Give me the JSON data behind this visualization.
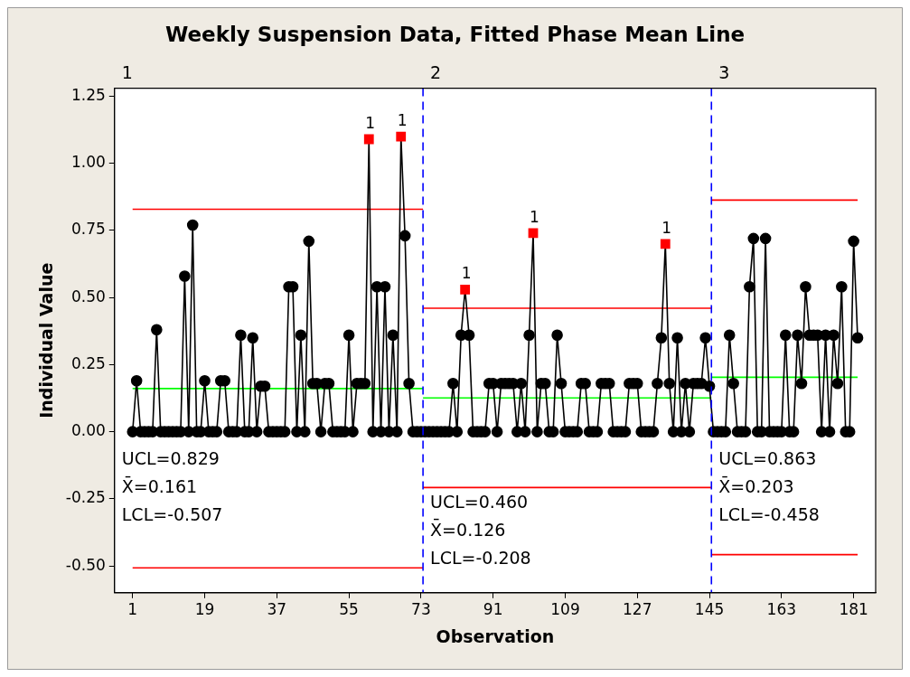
{
  "chart_data": {
    "type": "line",
    "title": "Weekly Suspension Data, Fitted Phase Mean Line",
    "xlabel": "Observation",
    "ylabel": "Individual Value",
    "x": [
      1,
      2,
      3,
      4,
      5,
      6,
      7,
      8,
      9,
      10,
      11,
      12,
      13,
      14,
      15,
      16,
      17,
      18,
      19,
      20,
      21,
      22,
      23,
      24,
      25,
      26,
      27,
      28,
      29,
      30,
      31,
      32,
      33,
      34,
      35,
      36,
      37,
      38,
      39,
      40,
      41,
      42,
      43,
      44,
      45,
      46,
      47,
      48,
      49,
      50,
      51,
      52,
      53,
      54,
      55,
      56,
      57,
      58,
      59,
      60,
      61,
      62,
      63,
      64,
      65,
      66,
      67,
      68,
      69,
      70,
      71,
      72,
      73,
      74,
      75,
      76,
      77,
      78,
      79,
      80,
      81,
      82,
      83,
      84,
      85,
      86,
      87,
      88,
      89,
      90,
      91,
      92,
      93,
      94,
      95,
      96,
      97,
      98,
      99,
      100,
      101,
      102,
      103,
      104,
      105,
      106,
      107,
      108,
      109,
      110,
      111,
      112,
      113,
      114,
      115,
      116,
      117,
      118,
      119,
      120,
      121,
      122,
      123,
      124,
      125,
      126,
      127,
      128,
      129,
      130,
      131,
      132,
      133,
      134,
      135,
      136,
      137,
      138,
      139,
      140,
      141,
      142,
      143,
      144,
      145,
      146,
      147,
      148,
      149,
      150,
      151,
      152,
      153,
      154,
      155,
      156,
      157,
      158,
      159,
      160,
      161,
      162,
      163,
      164,
      165,
      166,
      167,
      168,
      169,
      170,
      171,
      172,
      173,
      174,
      175,
      176,
      177,
      178,
      179,
      180,
      181,
      182
    ],
    "series": [
      {
        "color": "#000000",
        "marker": "circle",
        "colors": [
          "#000000",
          "#000000",
          "#000000",
          "#000000",
          "#000000",
          "#000000",
          "#000000",
          "#000000",
          "#000000",
          "#000000",
          "#000000",
          "#000000",
          "#000000",
          "#000000",
          "#000000",
          "#000000",
          "#000000",
          "#000000",
          "#000000",
          "#000000",
          "#000000",
          "#000000",
          "#000000",
          "#000000",
          "#000000",
          "#000000",
          "#000000",
          "#000000",
          "#000000",
          "#000000",
          "#000000",
          "#000000",
          "#000000",
          "#000000",
          "#000000",
          "#000000",
          "#000000",
          "#000000",
          "#000000",
          "#000000",
          "#000000",
          "#000000",
          "#000000",
          "#000000",
          "#000000",
          "#000000",
          "#000000",
          "#000000",
          "#000000",
          "#000000",
          "#000000",
          "#000000",
          "#000000",
          "#000000",
          "#000000",
          "#000000",
          "#000000",
          "#000000",
          "#000000",
          "#ff0000",
          "#000000",
          "#000000",
          "#000000",
          "#000000",
          "#000000",
          "#000000",
          "#000000",
          "#ff0000",
          "#000000",
          "#000000",
          "#000000",
          "#000000",
          "#000000",
          "#000000",
          "#000000",
          "#000000",
          "#000000",
          "#000000",
          "#000000",
          "#000000",
          "#000000",
          "#000000",
          "#000000",
          "#ff0000",
          "#000000",
          "#000000",
          "#000000",
          "#000000",
          "#000000",
          "#000000",
          "#000000",
          "#000000",
          "#000000",
          "#000000",
          "#000000",
          "#000000",
          "#000000",
          "#000000",
          "#000000",
          "#000000",
          "#ff0000",
          "#000000",
          "#000000",
          "#000000",
          "#000000",
          "#000000",
          "#000000",
          "#000000",
          "#000000",
          "#000000",
          "#000000",
          "#000000",
          "#000000",
          "#000000",
          "#000000",
          "#000000",
          "#000000",
          "#000000",
          "#000000",
          "#000000",
          "#000000",
          "#000000",
          "#000000",
          "#000000",
          "#000000",
          "#000000",
          "#000000",
          "#000000",
          "#000000",
          "#000000",
          "#000000",
          "#000000",
          "#000000",
          "#ff0000",
          "#000000",
          "#000000",
          "#000000",
          "#000000",
          "#000000",
          "#000000",
          "#000000",
          "#000000",
          "#000000",
          "#000000",
          "#000000",
          "#000000",
          "#000000",
          "#000000",
          "#000000",
          "#000000",
          "#000000",
          "#000000",
          "#000000",
          "#000000",
          "#000000",
          "#000000",
          "#000000",
          "#000000",
          "#000000",
          "#000000",
          "#000000",
          "#000000",
          "#000000",
          "#000000",
          "#000000",
          "#000000",
          "#000000",
          "#000000",
          "#000000",
          "#000000",
          "#000000",
          "#000000",
          "#000000",
          "#000000",
          "#000000",
          "#000000",
          "#000000",
          "#000000",
          "#000000",
          "#000000",
          "#000000",
          "#000000"
        ],
        "values": [
          0,
          0.19,
          0,
          0,
          0,
          0,
          0.38,
          0,
          0,
          0,
          0,
          0,
          0,
          0.58,
          0,
          0.77,
          0,
          0,
          0.19,
          0,
          0,
          0,
          0.19,
          0.19,
          0,
          0,
          0,
          0.36,
          0,
          0,
          0.35,
          0,
          0.17,
          0.17,
          0,
          0,
          0,
          0,
          0,
          0.54,
          0.54,
          0,
          0.36,
          0,
          0.71,
          0.18,
          0.18,
          0,
          0.18,
          0.18,
          0,
          0,
          0,
          0,
          0.36,
          0,
          0.18,
          0.18,
          0.18,
          1.09,
          0,
          0.54,
          0,
          0.54,
          0,
          0.36,
          0,
          1.1,
          0.73,
          0.18,
          0,
          0,
          0,
          0,
          0,
          0,
          0,
          0,
          0,
          0,
          0.18,
          0,
          0.36,
          0.53,
          0.36,
          0,
          0,
          0,
          0,
          0.18,
          0.18,
          0,
          0.18,
          0.18,
          0.18,
          0.18,
          0,
          0.18,
          0,
          0.36,
          0.74,
          0,
          0.18,
          0.18,
          0,
          0,
          0.36,
          0.18,
          0,
          0,
          0,
          0,
          0.18,
          0.18,
          0,
          0,
          0,
          0.18,
          0.18,
          0.18,
          0,
          0,
          0,
          0,
          0.18,
          0.18,
          0.18,
          0,
          0,
          0,
          0,
          0.18,
          0.35,
          0.7,
          0.18,
          0,
          0.35,
          0,
          0.18,
          0,
          0.18,
          0.18,
          0.18,
          0.35,
          0.17,
          0,
          0,
          0,
          0,
          0.36,
          0.18,
          0,
          0,
          0,
          0.54,
          0.72,
          0,
          0,
          0.72,
          0,
          0,
          0,
          0,
          0.36,
          0,
          0,
          0.36,
          0.18,
          0.54,
          0.36,
          0.36,
          0.36,
          0,
          0.36,
          0,
          0.36,
          0.18,
          0.54,
          0,
          0,
          0.71,
          0.35
        ]
      },
      {
        "color": "#ff0000",
        "marker": "none",
        "x": [
          1,
          73.5
        ],
        "values": [
          0.829,
          0.829
        ]
      },
      {
        "color": "#00ff00",
        "marker": "none",
        "x": [
          1,
          73.5
        ],
        "values": [
          0.161,
          0.161
        ]
      },
      {
        "color": "#ff0000",
        "marker": "none",
        "x": [
          1,
          73.5
        ],
        "values": [
          -0.507,
          -0.507
        ]
      },
      {
        "color": "#ff0000",
        "marker": "none",
        "x": [
          73.5,
          145.5
        ],
        "values": [
          0.46,
          0.46
        ]
      },
      {
        "color": "#00ff00",
        "marker": "none",
        "x": [
          73.5,
          145.5
        ],
        "values": [
          0.126,
          0.126
        ]
      },
      {
        "color": "#ff0000",
        "marker": "none",
        "x": [
          73.5,
          145.5
        ],
        "values": [
          -0.208,
          -0.208
        ]
      },
      {
        "color": "#ff0000",
        "marker": "none",
        "x": [
          145.5,
          182
        ],
        "values": [
          0.863,
          0.863
        ]
      },
      {
        "color": "#00ff00",
        "marker": "none",
        "x": [
          145.5,
          182
        ],
        "values": [
          0.203,
          0.203
        ]
      },
      {
        "color": "#ff0000",
        "marker": "none",
        "x": [
          145.5,
          182
        ],
        "values": [
          -0.458,
          -0.458
        ]
      }
    ],
    "xlim": [
      -3.5,
      186.5
    ],
    "xticks": [
      1,
      19,
      37,
      55,
      73,
      91,
      109,
      127,
      145,
      163,
      181
    ],
    "ylim": [
      -0.6,
      1.28
    ],
    "yticks": [
      {
        "value": -0.5,
        "label": "-0.50"
      },
      {
        "value": -0.25,
        "label": "-0.25"
      },
      {
        "value": 0,
        "label": "0.00"
      },
      {
        "value": 0.25,
        "label": "0.25"
      },
      {
        "value": 0.5,
        "label": "0.50"
      },
      {
        "value": 0.75,
        "label": "0.75"
      },
      {
        "value": 1,
        "label": "1.00"
      },
      {
        "value": 1.25,
        "label": "1.25"
      }
    ],
    "ref_lines": [
      {
        "axis": "x",
        "value": 73.5,
        "color": "#0000ff",
        "line_style": "dashed"
      },
      {
        "axis": "x",
        "value": 145.5,
        "color": "#0000ff",
        "line_style": "dashed"
      }
    ],
    "annotations": [
      {
        "text": "1",
        "x": 60,
        "y": 1.09
      },
      {
        "text": "1",
        "x": 68,
        "y": 1.1
      },
      {
        "text": "1",
        "x": 84,
        "y": 0.53
      },
      {
        "text": "1",
        "x": 101,
        "y": 0.74
      },
      {
        "text": "1",
        "x": 134,
        "y": 0.7
      },
      "1",
      "UCL=0.829",
      "X̄=0.161",
      "LCL=-0.507",
      "2",
      "UCL=0.460",
      "X̄=0.126",
      "LCL=-0.208",
      "3",
      "UCL=0.863",
      "X̄=0.203",
      "LCL=-0.458"
    ]
  }
}
